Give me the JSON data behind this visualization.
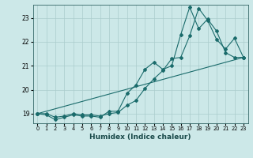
{
  "xlabel": "Humidex (Indice chaleur)",
  "bg_color": "#cce8e8",
  "grid_color": "#aacccc",
  "line_color": "#1a6b6b",
  "xlim": [
    -0.5,
    23.5
  ],
  "ylim": [
    18.6,
    23.55
  ],
  "yticks": [
    19,
    20,
    21,
    22,
    23
  ],
  "xticks": [
    0,
    1,
    2,
    3,
    4,
    5,
    6,
    7,
    8,
    9,
    10,
    11,
    12,
    13,
    14,
    15,
    16,
    17,
    18,
    19,
    20,
    21,
    22,
    23
  ],
  "line1_x": [
    0,
    1,
    2,
    3,
    4,
    5,
    6,
    7,
    8,
    9,
    10,
    11,
    12,
    13,
    14,
    15,
    16,
    17,
    18,
    19,
    20,
    21,
    22,
    23
  ],
  "line1_y": [
    19.0,
    19.0,
    18.85,
    18.9,
    19.0,
    18.95,
    18.95,
    18.9,
    19.0,
    19.05,
    19.35,
    19.55,
    20.05,
    20.45,
    20.8,
    21.3,
    21.35,
    22.25,
    23.4,
    22.9,
    22.1,
    21.7,
    22.15,
    21.35
  ],
  "line2_x": [
    0,
    1,
    2,
    3,
    4,
    5,
    6,
    7,
    8,
    9,
    10,
    11,
    12,
    13,
    14,
    15,
    16,
    17,
    18,
    19,
    20,
    21,
    22,
    23
  ],
  "line2_y": [
    19.0,
    18.95,
    18.75,
    18.85,
    18.95,
    18.9,
    18.9,
    18.85,
    19.1,
    19.1,
    19.85,
    20.2,
    20.85,
    21.15,
    20.85,
    21.0,
    22.3,
    23.45,
    22.55,
    22.95,
    22.45,
    21.55,
    21.35,
    21.35
  ],
  "line3_x": [
    0,
    23
  ],
  "line3_y": [
    19.0,
    21.35
  ]
}
